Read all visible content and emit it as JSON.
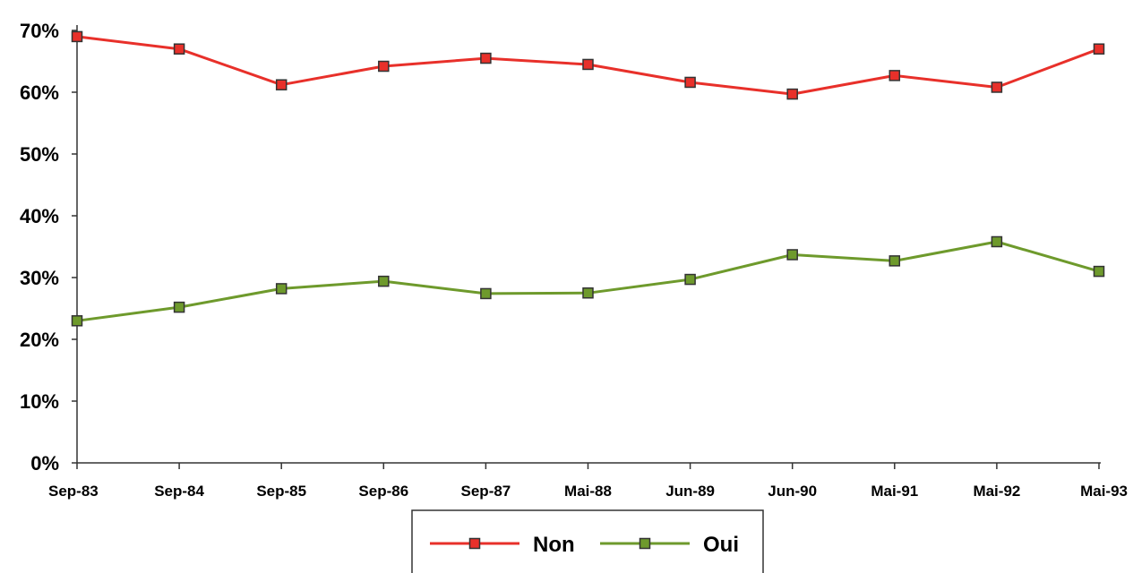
{
  "chart_data": {
    "type": "line",
    "title": "",
    "xlabel": "",
    "ylabel": "",
    "categories": [
      "Sep-83",
      "Sep-84",
      "Sep-85",
      "Sep-86",
      "Sep-87",
      "Mai-88",
      "Jun-89",
      "Jun-90",
      "Mai-91",
      "Mai-92",
      "Mai-93"
    ],
    "y_ticks": [
      "0%",
      "10%",
      "20%",
      "30%",
      "40%",
      "50%",
      "60%",
      "70%"
    ],
    "ylim": [
      0,
      70
    ],
    "grid": false,
    "legend_position": "bottom",
    "series": [
      {
        "name": "Non",
        "color": "#e8302a",
        "marker": "square",
        "values": [
          69,
          67,
          61.2,
          64.2,
          65.5,
          64.5,
          61.6,
          59.7,
          62.7,
          60.8,
          67
        ]
      },
      {
        "name": "Oui",
        "color": "#6e9a2c",
        "marker": "square",
        "values": [
          23,
          25.2,
          28.2,
          29.4,
          27.4,
          27.5,
          29.7,
          33.7,
          32.7,
          35.8,
          31
        ]
      }
    ]
  }
}
